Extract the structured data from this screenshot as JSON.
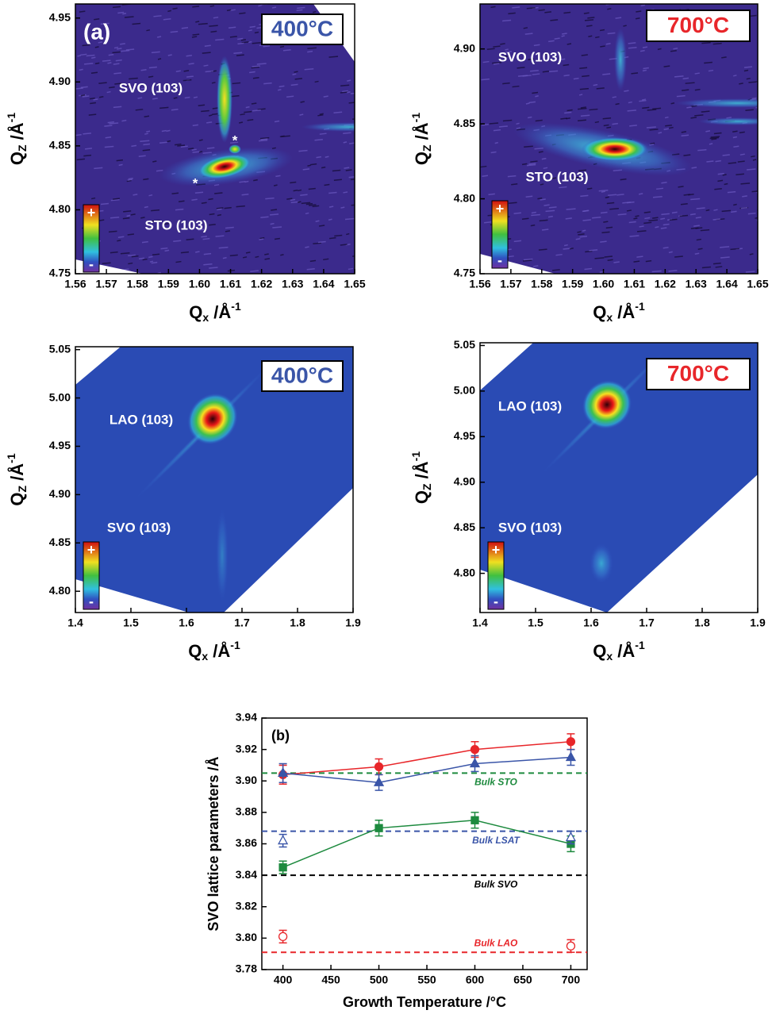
{
  "chart_data": [
    {
      "type": "map",
      "panel_label": "(a)",
      "temperature": "400°C",
      "temperature_color": "#3a55a8",
      "annotations": [
        "SVO (103)",
        "STO (103)",
        "*",
        "*"
      ],
      "colorbar_labels": [
        "+",
        "-"
      ],
      "xlabel": [
        "Q",
        "x",
        " /Å",
        "-1"
      ],
      "ylabel": [
        "Q",
        "Z",
        " /Å",
        "-1"
      ],
      "xlim": [
        1.56,
        1.65
      ],
      "xticks": [
        1.56,
        1.57,
        1.58,
        1.59,
        {
          "value": 1.6,
          "label": "1.60"
        },
        1.61,
        1.62,
        1.63,
        1.64,
        1.65
      ],
      "ylim": [
        4.75,
        4.961
      ],
      "yticks": [
        4.75,
        {
          "value": 4.8,
          "label": "4.80"
        },
        4.85,
        {
          "value": 4.9,
          "label": "4.90"
        },
        4.95
      ]
    },
    {
      "type": "map",
      "temperature": "700°C",
      "temperature_color": "#e8262a",
      "annotations": [
        "SVO (103)",
        "STO (103)"
      ],
      "colorbar_labels": [
        "+",
        "-"
      ],
      "xlabel": [
        "Q",
        "x",
        " /Å",
        "-1"
      ],
      "ylabel": [
        "Q",
        "Z",
        " /Å",
        "-1"
      ],
      "xlim": [
        1.56,
        1.65
      ],
      "xticks": [
        1.56,
        1.57,
        1.58,
        1.59,
        {
          "value": 1.6,
          "label": "1.60"
        },
        1.61,
        1.62,
        1.63,
        1.64,
        1.65
      ],
      "ylim": [
        4.75,
        4.93
      ],
      "yticks": [
        4.75,
        {
          "value": 4.8,
          "label": "4.80"
        },
        4.85,
        {
          "value": 4.9,
          "label": "4.90"
        }
      ]
    },
    {
      "type": "map",
      "temperature": "400°C",
      "temperature_color": "#3a55a8",
      "annotations": [
        "LAO (103)",
        "SVO (103)"
      ],
      "colorbar_labels": [
        "+",
        "-"
      ],
      "xlabel": [
        "Q",
        "x",
        " /Å",
        "-1"
      ],
      "ylabel": [
        "Q",
        "Z",
        " /Å",
        "-1"
      ],
      "xlim": [
        1.4,
        1.9
      ],
      "xticks": [
        1.4,
        1.5,
        1.6,
        1.7,
        1.8,
        1.9
      ],
      "ylim": [
        4.778,
        5.053
      ],
      "yticks": [
        {
          "value": 4.8,
          "label": "4.80"
        },
        4.85,
        {
          "value": 4.9,
          "label": "4.90"
        },
        4.95,
        {
          "value": 5.0,
          "label": "5.00"
        },
        5.05
      ]
    },
    {
      "type": "map",
      "temperature": "700°C",
      "temperature_color": "#e8262a",
      "annotations": [
        "LAO (103)",
        "SVO (103)"
      ],
      "colorbar_labels": [
        "+",
        "-"
      ],
      "xlabel": [
        "Q",
        "x",
        " /Å",
        "-1"
      ],
      "ylabel": [
        "Q",
        "Z",
        " /Å",
        "-1"
      ],
      "xlim": [
        1.4,
        1.9
      ],
      "xticks": [
        1.4,
        1.5,
        1.6,
        1.7,
        1.8,
        1.9
      ],
      "ylim": [
        4.757,
        5.053
      ],
      "yticks": [
        {
          "value": 4.8,
          "label": "4.80"
        },
        4.85,
        {
          "value": 4.9,
          "label": "4.90"
        },
        4.95,
        {
          "value": 5.0,
          "label": "5.00"
        },
        5.05
      ]
    },
    {
      "type": "line",
      "panel_label": "(b)",
      "xlabel": "Growth Temperature /°C",
      "ylabel": "SVO lattice parameters /Å",
      "xlim": [
        378,
        717
      ],
      "xticks": [
        400,
        450,
        500,
        550,
        600,
        650,
        700
      ],
      "ylim": [
        3.78,
        3.94
      ],
      "yticks": [
        3.78,
        {
          "value": 3.8,
          "label": "3.80"
        },
        3.82,
        3.84,
        3.86,
        3.88,
        {
          "value": 3.9,
          "label": "3.90"
        },
        3.92,
        3.94
      ],
      "reference_lines": [
        {
          "label": "Bulk STO",
          "value": 3.905,
          "color": "#1d8a3e"
        },
        {
          "label": "Bulk LSAT",
          "value": 3.868,
          "color": "#3a55a8"
        },
        {
          "label": "Bulk SVO",
          "value": 3.84,
          "color": "#000000"
        },
        {
          "label": "Bulk LAO",
          "value": 3.791,
          "color": "#e8262a"
        }
      ],
      "series": [
        {
          "color": "#e8262a",
          "marker": "circle",
          "filled": true,
          "line": true,
          "x": [
            400,
            500,
            600,
            700
          ],
          "values": [
            3.904,
            3.909,
            3.92,
            3.925
          ],
          "errors": [
            0.006,
            0.005,
            0.005,
            0.005
          ]
        },
        {
          "color": "#3a55a8",
          "marker": "triangle",
          "filled": true,
          "line": true,
          "x": [
            400,
            500,
            600,
            700
          ],
          "values": [
            3.905,
            3.899,
            3.911,
            3.915
          ],
          "errors": [
            0.006,
            0.005,
            0.005,
            0.005
          ]
        },
        {
          "color": "#1d8a3e",
          "marker": "square",
          "filled": true,
          "line": true,
          "x": [
            400,
            500,
            600,
            700
          ],
          "values": [
            3.845,
            3.87,
            3.875,
            3.86
          ],
          "errors": [
            0.004,
            0.005,
            0.005,
            0.005
          ]
        },
        {
          "color": "#3a55a8",
          "marker": "triangle",
          "filled": false,
          "line": false,
          "x": [
            400,
            700
          ],
          "values": [
            3.862,
            3.864
          ],
          "errors": [
            0.004,
            0.004
          ]
        },
        {
          "color": "#e8262a",
          "marker": "circle",
          "filled": false,
          "line": false,
          "x": [
            400,
            700
          ],
          "values": [
            3.801,
            3.795
          ],
          "errors": [
            0.004,
            0.004
          ]
        }
      ]
    }
  ]
}
